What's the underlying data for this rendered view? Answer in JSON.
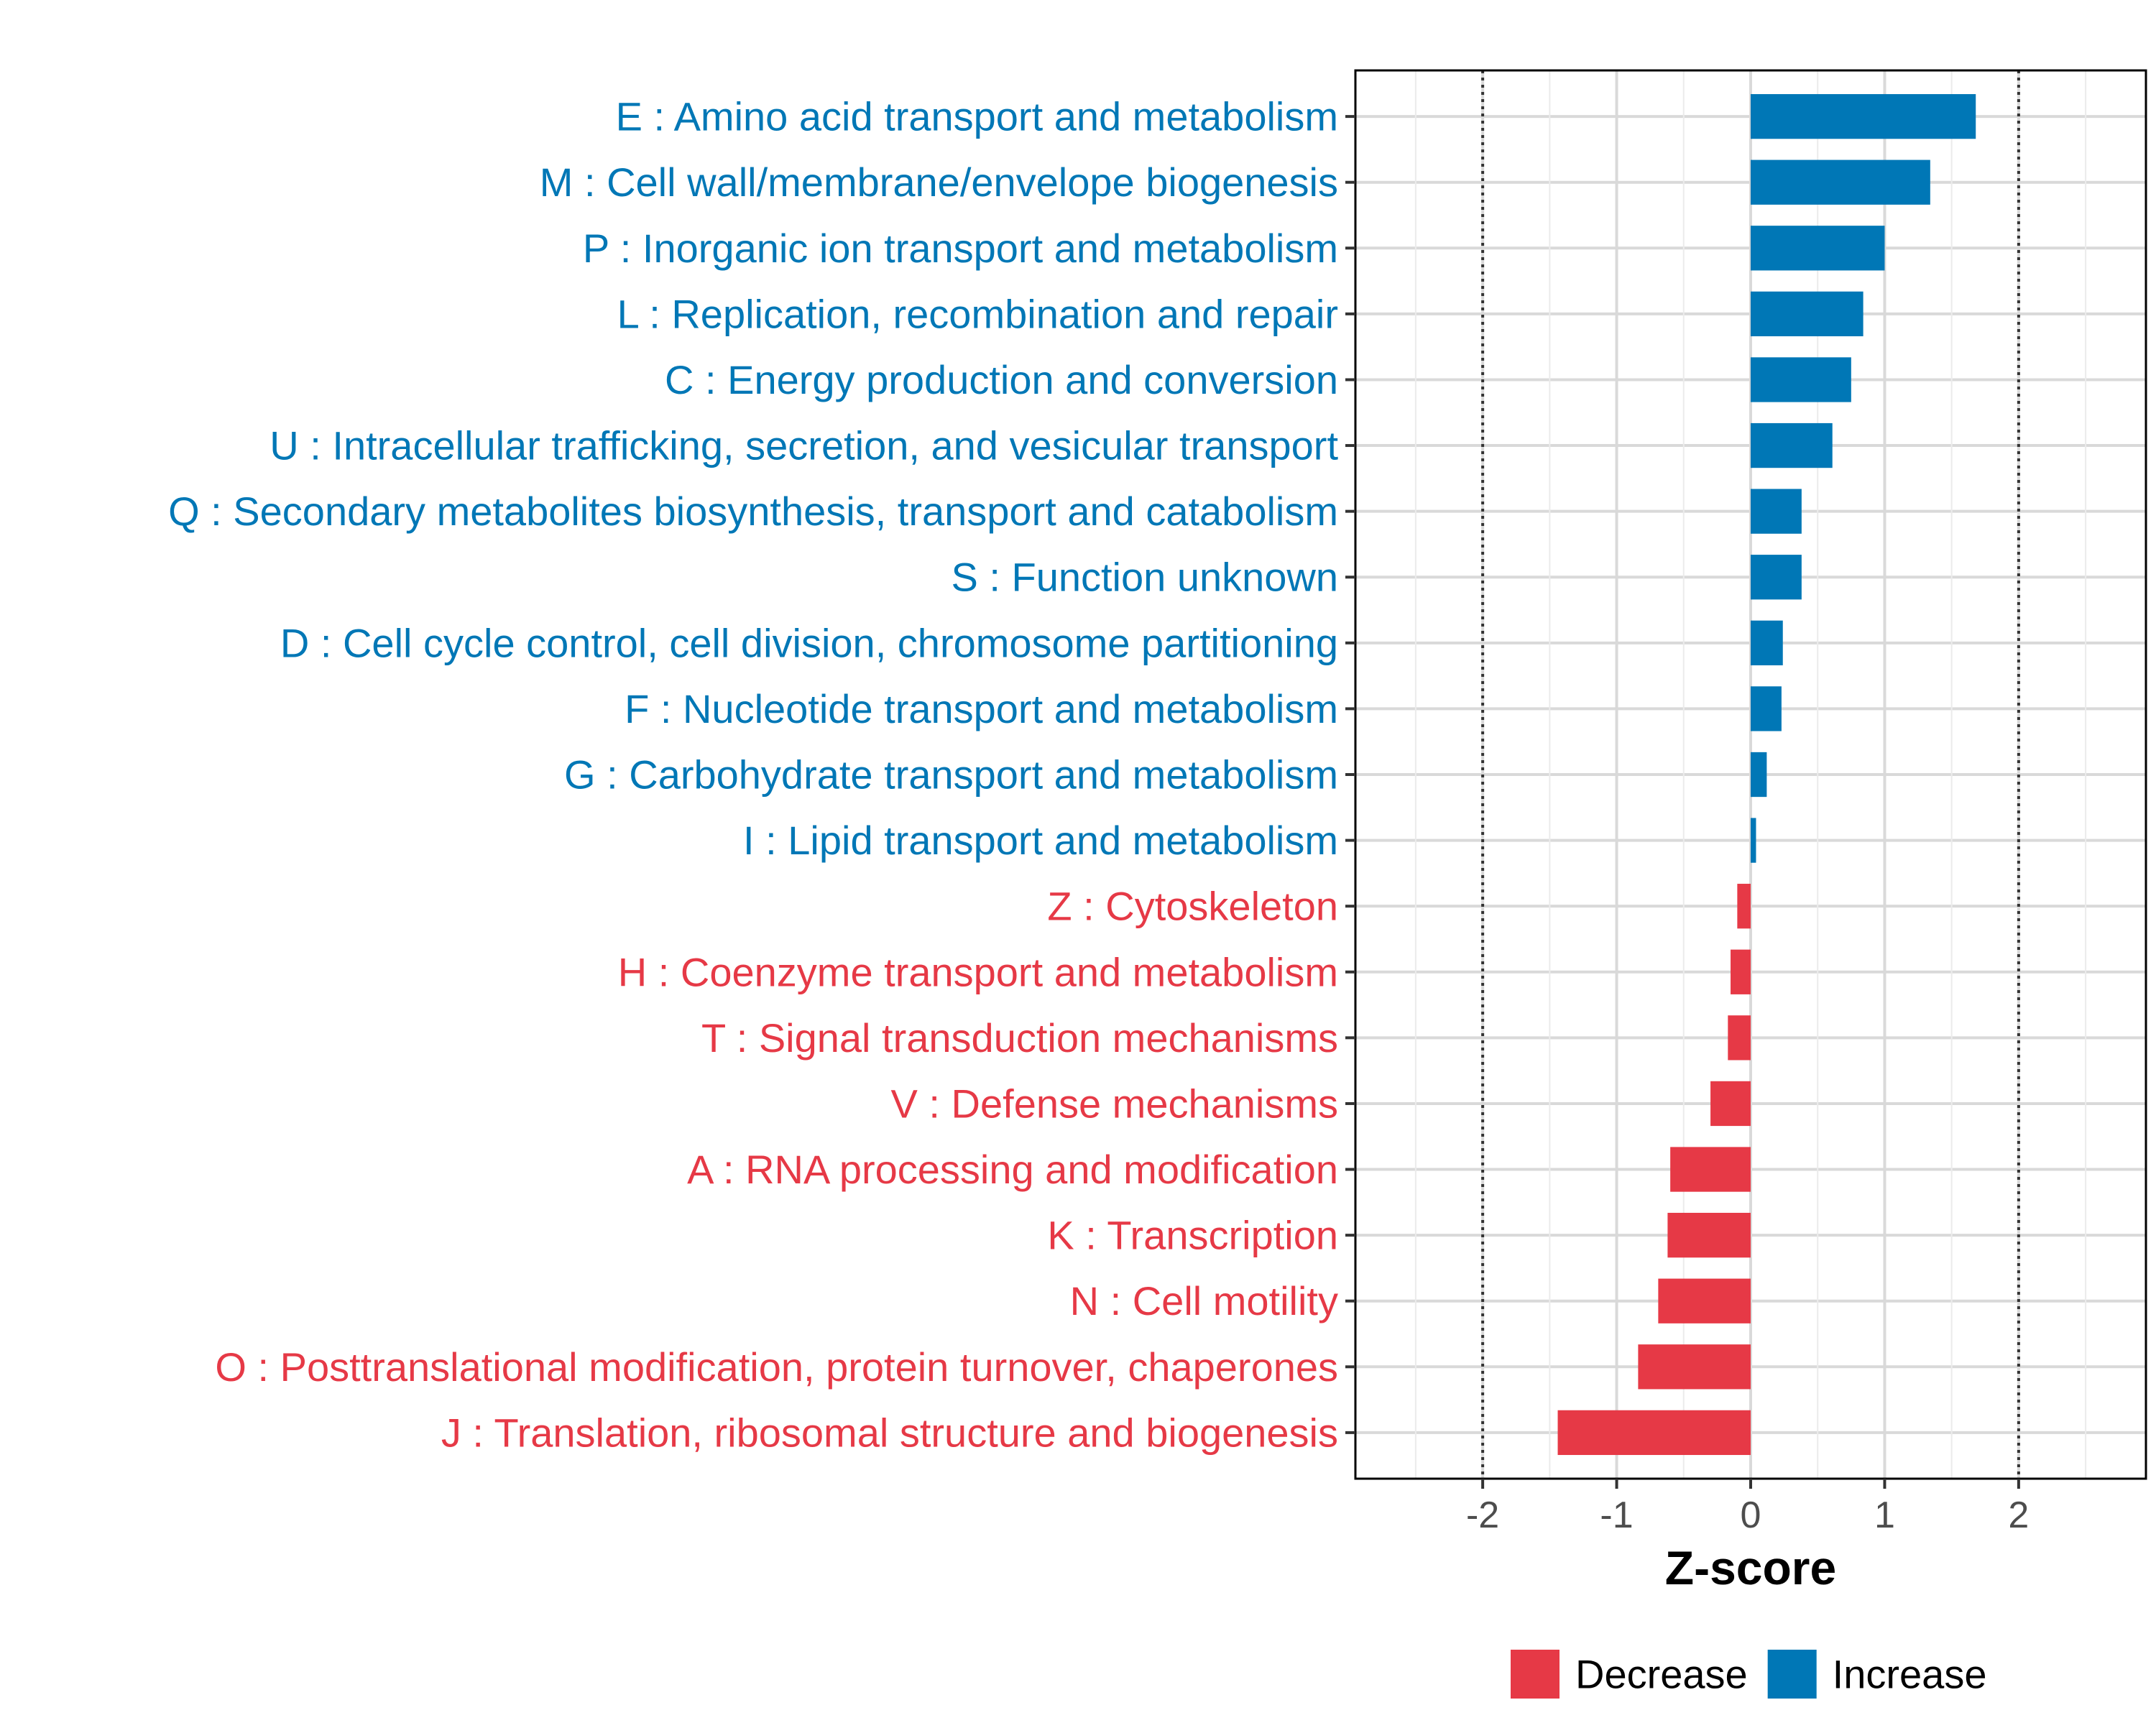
{
  "chart_data": {
    "type": "bar",
    "orientation": "horizontal",
    "title": "",
    "xlabel": "Z-score",
    "ylabel": "",
    "xlim": [
      -2.95,
      2.95
    ],
    "xticks": [
      -2,
      -1,
      0,
      1,
      2
    ],
    "xtick_labels": [
      "-2",
      "-1",
      "0",
      "1",
      "2"
    ],
    "reference_lines": [
      -2,
      2
    ],
    "grid": true,
    "categories": [
      "E : Amino acid transport and metabolism",
      "M : Cell wall/membrane/envelope biogenesis",
      "P : Inorganic ion transport and metabolism",
      "L : Replication, recombination and repair",
      "C : Energy production and conversion",
      "U : Intracellular trafficking, secretion, and vesicular transport",
      "Q : Secondary metabolites biosynthesis, transport and catabolism",
      "S : Function unknown",
      "D : Cell cycle control, cell division, chromosome partitioning",
      "F : Nucleotide transport and metabolism",
      "G : Carbohydrate transport and metabolism",
      "I : Lipid transport and metabolism",
      "Z : Cytoskeleton",
      "H : Coenzyme transport and metabolism",
      "T : Signal transduction mechanisms",
      "V : Defense mechanisms",
      "A : RNA processing and modification",
      "K : Transcription",
      "N : Cell motility",
      "O : Posttranslational modification, protein turnover, chaperones",
      "J : Translation, ribosomal structure and biogenesis"
    ],
    "values": [
      1.68,
      1.34,
      1.0,
      0.84,
      0.75,
      0.61,
      0.38,
      0.38,
      0.24,
      0.23,
      0.12,
      0.04,
      -0.1,
      -0.15,
      -0.17,
      -0.3,
      -0.6,
      -0.62,
      -0.69,
      -0.84,
      -1.44
    ],
    "groups": [
      "Increase",
      "Increase",
      "Increase",
      "Increase",
      "Increase",
      "Increase",
      "Increase",
      "Increase",
      "Increase",
      "Increase",
      "Increase",
      "Increase",
      "Decrease",
      "Decrease",
      "Decrease",
      "Decrease",
      "Decrease",
      "Decrease",
      "Decrease",
      "Decrease",
      "Decrease"
    ],
    "legend": {
      "position": "bottom",
      "entries": [
        {
          "label": "Decrease",
          "color": "#E63946"
        },
        {
          "label": "Increase",
          "color": "#0077B6"
        }
      ]
    },
    "colors": {
      "Increase": "#0077B6",
      "Decrease": "#E63946",
      "grid": "#d9d9d9",
      "frame": "#000000"
    }
  }
}
